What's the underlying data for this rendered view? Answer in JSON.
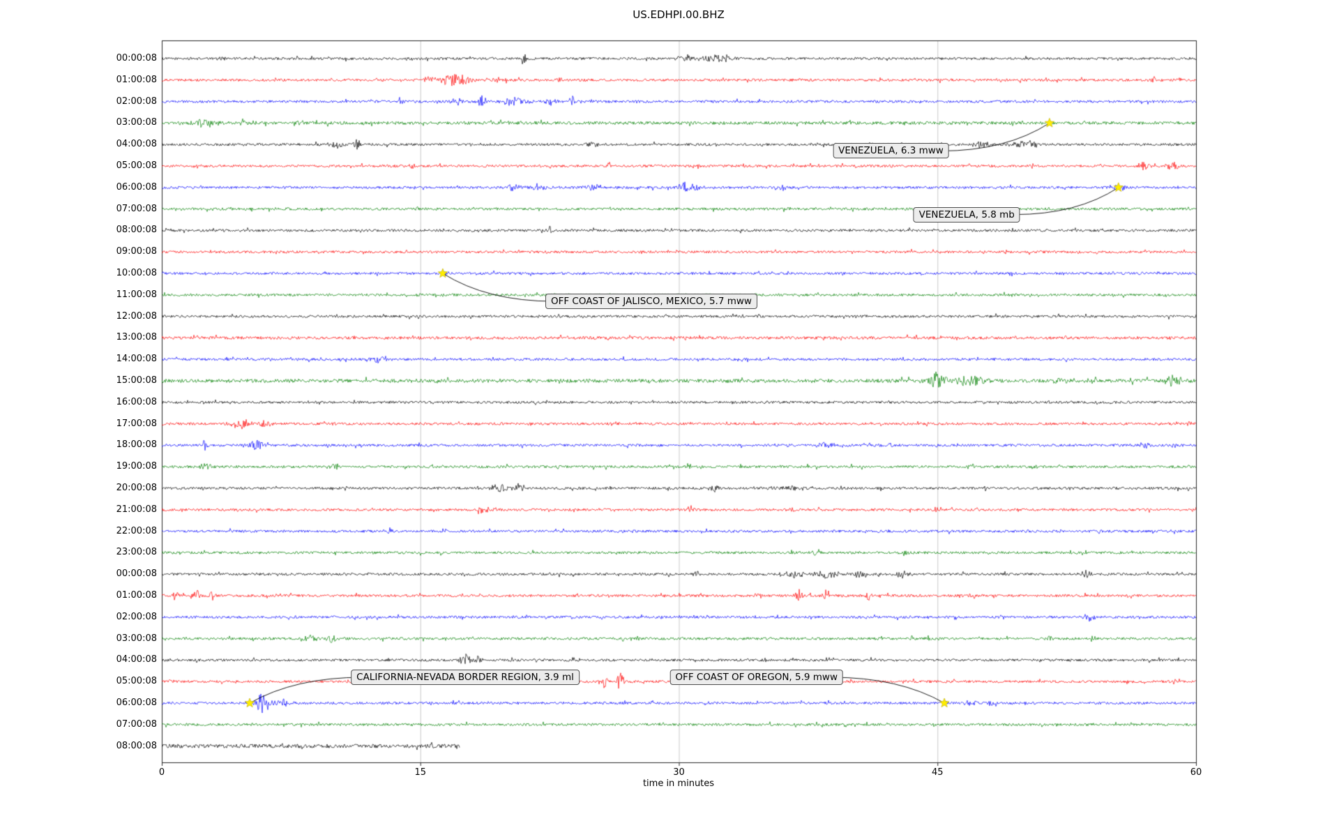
{
  "title": "US.EDHPI.00.BHZ",
  "xlabel": "time in minutes",
  "chart_data": {
    "type": "line",
    "subtype": "helicorder-seismogram",
    "station": "US.EDHPI.00.BHZ",
    "x_range": [
      0,
      60
    ],
    "x_ticks": [
      0,
      15,
      30,
      45,
      60
    ],
    "grid_minutes": [
      15,
      30,
      45
    ],
    "grid_on": true,
    "trace_color_cycle": [
      "#000000",
      "#ff0000",
      "#0000ff",
      "#007f00"
    ],
    "marker_color": "#ffee00",
    "row_labels": [
      "00:00:08",
      "01:00:08",
      "02:00:08",
      "03:00:08",
      "04:00:08",
      "05:00:08",
      "06:00:08",
      "07:00:08",
      "08:00:08",
      "09:00:08",
      "10:00:08",
      "11:00:08",
      "12:00:08",
      "13:00:08",
      "14:00:08",
      "15:00:08",
      "16:00:08",
      "17:00:08",
      "18:00:08",
      "19:00:08",
      "20:00:08",
      "21:00:08",
      "22:00:08",
      "23:00:08",
      "00:00:08",
      "01:00:08",
      "02:00:08",
      "03:00:08",
      "04:00:08",
      "05:00:08",
      "06:00:08",
      "07:00:08",
      "08:00:08"
    ],
    "partial_rows": [
      {
        "row": 32,
        "end_minute": 17.3
      }
    ],
    "noise_base_default": 2.1,
    "noise_base_overrides": {
      "3": 2.6,
      "13": 2.4,
      "15": 3.0,
      "32": 3.2
    },
    "bursts": [
      [
        0,
        3.5,
        0.5,
        3
      ],
      [
        0,
        21,
        0.3,
        9
      ],
      [
        0,
        30.5,
        1.2,
        5
      ],
      [
        0,
        32.3,
        1.6,
        7
      ],
      [
        1,
        15.5,
        0.8,
        5
      ],
      [
        1,
        17,
        1.8,
        8
      ],
      [
        1,
        19.5,
        0.8,
        5
      ],
      [
        1,
        23,
        0.5,
        4
      ],
      [
        1,
        57.5,
        0.8,
        4
      ],
      [
        1,
        59,
        0.5,
        5
      ],
      [
        2,
        13.8,
        0.3,
        5
      ],
      [
        2,
        17,
        0.8,
        6
      ],
      [
        2,
        18.6,
        0.4,
        12
      ],
      [
        2,
        20.5,
        1.4,
        6
      ],
      [
        2,
        22.5,
        0.8,
        5
      ],
      [
        2,
        23.8,
        0.3,
        10
      ],
      [
        3,
        2.5,
        1.6,
        6
      ],
      [
        3,
        5,
        0.8,
        4
      ],
      [
        3,
        8,
        0.5,
        3
      ],
      [
        4,
        10,
        1,
        5
      ],
      [
        4,
        11.3,
        0.4,
        10
      ],
      [
        4,
        25,
        0.5,
        6
      ],
      [
        4,
        41,
        1,
        4
      ],
      [
        4,
        47.5,
        1,
        5
      ],
      [
        4,
        50,
        1.6,
        6
      ],
      [
        5,
        14.5,
        0.5,
        4
      ],
      [
        5,
        26,
        0.3,
        7
      ],
      [
        5,
        31,
        0.3,
        8
      ],
      [
        5,
        57,
        0.9,
        6
      ],
      [
        5,
        58.6,
        0.7,
        6
      ],
      [
        6,
        20.5,
        1,
        5
      ],
      [
        6,
        22,
        1.5,
        5
      ],
      [
        6,
        25,
        1,
        4
      ],
      [
        6,
        30.6,
        1.4,
        7
      ],
      [
        6,
        36,
        0.5,
        4
      ],
      [
        6,
        55.6,
        0.8,
        4
      ],
      [
        7,
        14.8,
        0.3,
        4
      ],
      [
        8,
        22.5,
        0.3,
        5
      ],
      [
        10,
        16.5,
        0.4,
        4
      ],
      [
        14,
        12.5,
        1.4,
        5
      ],
      [
        15,
        45,
        1.4,
        10
      ],
      [
        15,
        46.8,
        1.8,
        7
      ],
      [
        15,
        52,
        0.5,
        4
      ],
      [
        15,
        58.6,
        0.9,
        8
      ],
      [
        17,
        4.6,
        1.1,
        7
      ],
      [
        17,
        6,
        0.7,
        5
      ],
      [
        17,
        10,
        0.4,
        3
      ],
      [
        18,
        2.5,
        0.4,
        7
      ],
      [
        18,
        5.5,
        1,
        7
      ],
      [
        18,
        38.5,
        0.9,
        5
      ],
      [
        18,
        42,
        0.7,
        5
      ],
      [
        18,
        57,
        0.7,
        4
      ],
      [
        19,
        2.5,
        0.7,
        5
      ],
      [
        19,
        10,
        0.7,
        4
      ],
      [
        19,
        30.6,
        0.5,
        4
      ],
      [
        19,
        47,
        0.5,
        4
      ],
      [
        19,
        50.6,
        0.5,
        4
      ],
      [
        20,
        19.5,
        0.9,
        6
      ],
      [
        20,
        20.8,
        0.5,
        8
      ],
      [
        20,
        32,
        0.5,
        5
      ],
      [
        20,
        36.5,
        2.5,
        3
      ],
      [
        21,
        18.6,
        0.9,
        7
      ],
      [
        21,
        30.7,
        0.3,
        9
      ],
      [
        21,
        36.6,
        0.5,
        4
      ],
      [
        21,
        45,
        0.4,
        6
      ],
      [
        22,
        13.2,
        0.5,
        5
      ],
      [
        23,
        38,
        0.5,
        5
      ],
      [
        23,
        43,
        0.5,
        4
      ],
      [
        24,
        31,
        0.5,
        4
      ],
      [
        24,
        36.6,
        1.4,
        5
      ],
      [
        24,
        38.6,
        1.4,
        6
      ],
      [
        24,
        40.5,
        1,
        5
      ],
      [
        24,
        43,
        1,
        5
      ],
      [
        24,
        53.6,
        0.5,
        7
      ],
      [
        25,
        0.8,
        0.4,
        8
      ],
      [
        25,
        2,
        0.4,
        8
      ],
      [
        25,
        2.9,
        0.4,
        7
      ],
      [
        25,
        30,
        0.3,
        4
      ],
      [
        25,
        34.6,
        0.4,
        6
      ],
      [
        25,
        37,
        0.5,
        8
      ],
      [
        25,
        38.6,
        0.5,
        9
      ],
      [
        25,
        41,
        0.3,
        7
      ],
      [
        25,
        47,
        0.3,
        6
      ],
      [
        26,
        53.8,
        0.9,
        6
      ],
      [
        27,
        8.6,
        0.9,
        6
      ],
      [
        27,
        9.9,
        0.5,
        5
      ],
      [
        27,
        44.5,
        0.4,
        4
      ],
      [
        27,
        51.5,
        0.5,
        4
      ],
      [
        27,
        54,
        0.5,
        4
      ],
      [
        28,
        17.6,
        0.8,
        9
      ],
      [
        28,
        18.4,
        0.5,
        6
      ],
      [
        29,
        0.5,
        0.3,
        4
      ],
      [
        29,
        25.7,
        0.3,
        10
      ],
      [
        29,
        26.6,
        0.35,
        16
      ],
      [
        30,
        5.8,
        1.1,
        14
      ],
      [
        30,
        7,
        0.8,
        6
      ],
      [
        30,
        45.5,
        0.3,
        3
      ],
      [
        30,
        47,
        0.8,
        5
      ],
      [
        30,
        48.2,
        0.5,
        4
      ]
    ],
    "events": [
      {
        "label": "VENEZUELA, 6.3 mww",
        "star": {
          "row": 3,
          "minute": 51.5
        },
        "box": {
          "row": 4.3,
          "minute": 42.3
        }
      },
      {
        "label": "VENEZUELA, 5.8 mb",
        "star": {
          "row": 6,
          "minute": 55.5
        },
        "box": {
          "row": 7.26,
          "minute": 46.7
        }
      },
      {
        "label": "OFF COAST OF JALISCO, MEXICO, 5.7 mww",
        "star": {
          "row": 10,
          "minute": 16.3
        },
        "box": {
          "row": 11.3,
          "minute": 28.4
        }
      },
      {
        "label": "CALIFORNIA-NEVADA BORDER REGION, 3.9 ml",
        "star": {
          "row": 30,
          "minute": 5.1
        },
        "box": {
          "row": 28.8,
          "minute": 17.6
        }
      },
      {
        "label": "OFF COAST OF OREGON, 5.9 mww",
        "star": {
          "row": 30,
          "minute": 45.4
        },
        "box": {
          "row": 28.8,
          "minute": 34.5
        }
      }
    ]
  }
}
